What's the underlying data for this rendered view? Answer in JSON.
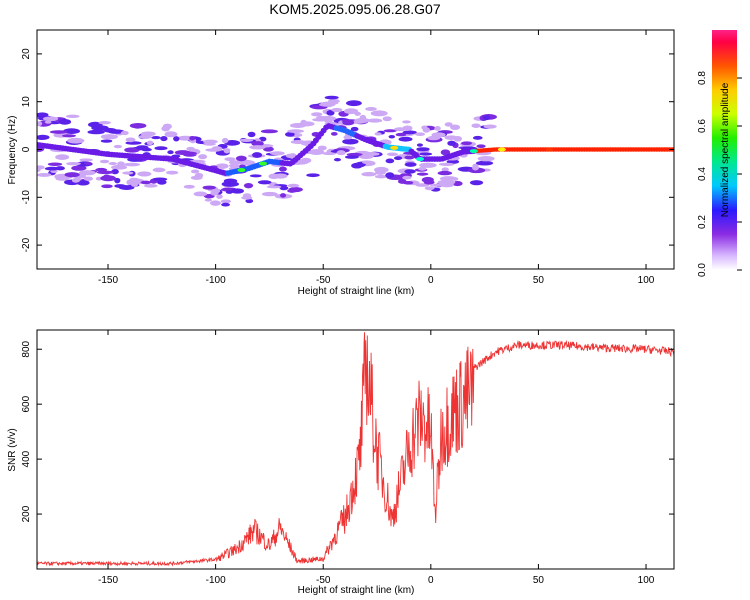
{
  "title": "KOM5.2025.095.06.28.G07",
  "chart_data": [
    {
      "type": "heatmap",
      "xlabel": "Height of straight line (km)",
      "ylabel": "Frequency (Hz)",
      "xlim": [
        -183,
        113
      ],
      "ylim": [
        -25,
        25
      ],
      "xticks": [
        -150,
        -100,
        -50,
        0,
        50,
        100
      ],
      "yticks": [
        -20,
        -10,
        0,
        10,
        20
      ],
      "colorbar": {
        "label": "Normalized spectral amplitude",
        "range": [
          0,
          1
        ],
        "ticks": [
          "0.0",
          "0.2",
          "0.4",
          "0.6",
          "0.8"
        ]
      },
      "ridge": [
        {
          "x": -183,
          "y": 1
        },
        {
          "x": -150,
          "y": -1
        },
        {
          "x": -120,
          "y": -2
        },
        {
          "x": -95,
          "y": -5
        },
        {
          "x": -85,
          "y": -4
        },
        {
          "x": -75,
          "y": -2.5
        },
        {
          "x": -65,
          "y": -3
        },
        {
          "x": -55,
          "y": 1
        },
        {
          "x": -48,
          "y": 5
        },
        {
          "x": -40,
          "y": 4
        },
        {
          "x": -30,
          "y": 2
        },
        {
          "x": -20,
          "y": 0.5
        },
        {
          "x": -10,
          "y": 0
        },
        {
          "x": -5,
          "y": -2
        },
        {
          "x": 5,
          "y": -2
        },
        {
          "x": 15,
          "y": -0.5
        },
        {
          "x": 30,
          "y": 0
        },
        {
          "x": 113,
          "y": 0
        }
      ]
    },
    {
      "type": "line",
      "xlabel": "Height of straight line (km)",
      "ylabel": "SNR (v/v)",
      "xlim": [
        -183,
        113
      ],
      "ylim": [
        0,
        870
      ],
      "xticks": [
        -150,
        -100,
        -50,
        0,
        50,
        100
      ],
      "yticks": [
        200,
        400,
        600,
        800
      ],
      "color": "#ee3333",
      "envelope": [
        {
          "x": -183,
          "y": 20
        },
        {
          "x": -120,
          "y": 20
        },
        {
          "x": -100,
          "y": 35
        },
        {
          "x": -90,
          "y": 80
        },
        {
          "x": -82,
          "y": 150
        },
        {
          "x": -75,
          "y": 90
        },
        {
          "x": -70,
          "y": 160
        },
        {
          "x": -62,
          "y": 30
        },
        {
          "x": -50,
          "y": 40
        },
        {
          "x": -40,
          "y": 200
        },
        {
          "x": -33,
          "y": 450
        },
        {
          "x": -30,
          "y": 860
        },
        {
          "x": -25,
          "y": 480
        },
        {
          "x": -18,
          "y": 200
        },
        {
          "x": -10,
          "y": 500
        },
        {
          "x": -5,
          "y": 620
        },
        {
          "x": 0,
          "y": 560
        },
        {
          "x": 2,
          "y": 220
        },
        {
          "x": 5,
          "y": 560
        },
        {
          "x": 10,
          "y": 640
        },
        {
          "x": 20,
          "y": 730
        },
        {
          "x": 30,
          "y": 790
        },
        {
          "x": 40,
          "y": 815
        },
        {
          "x": 60,
          "y": 815
        },
        {
          "x": 80,
          "y": 805
        },
        {
          "x": 100,
          "y": 800
        },
        {
          "x": 113,
          "y": 790
        }
      ]
    }
  ]
}
